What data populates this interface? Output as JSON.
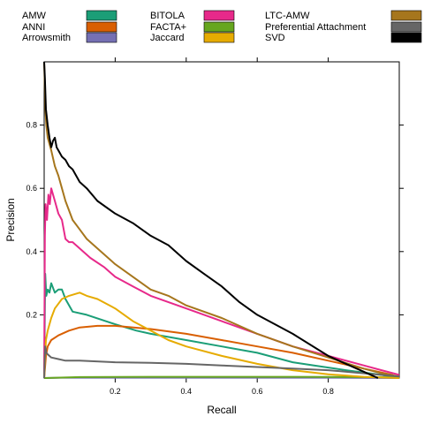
{
  "chart_data": {
    "type": "line",
    "xlabel": "Recall",
    "ylabel": "Precision",
    "xlim": [
      0,
      1
    ],
    "ylim": [
      0,
      1
    ],
    "x_ticks": [
      0.2,
      0.4,
      0.6,
      0.8
    ],
    "x_tick_labels": [
      "0.2",
      "0.4",
      "0.6",
      "0.8"
    ],
    "y_ticks": [
      0.2,
      0.4,
      0.6,
      0.8
    ],
    "y_tick_labels": [
      "0.2",
      "0.4",
      "0.6",
      "0.8"
    ],
    "legend_position": "top",
    "legend_columns": 3,
    "series": [
      {
        "name": "AMW",
        "color": "#1b9e77",
        "points": [
          [
            0.0,
            0.0
          ],
          [
            0.003,
            0.33
          ],
          [
            0.006,
            0.26
          ],
          [
            0.01,
            0.28
          ],
          [
            0.015,
            0.27
          ],
          [
            0.02,
            0.3
          ],
          [
            0.03,
            0.27
          ],
          [
            0.04,
            0.28
          ],
          [
            0.05,
            0.28
          ],
          [
            0.06,
            0.25
          ],
          [
            0.08,
            0.21
          ],
          [
            0.12,
            0.2
          ],
          [
            0.2,
            0.17
          ],
          [
            0.26,
            0.15
          ],
          [
            0.3,
            0.14
          ],
          [
            0.4,
            0.12
          ],
          [
            0.5,
            0.1
          ],
          [
            0.6,
            0.08
          ],
          [
            0.7,
            0.05
          ],
          [
            0.76,
            0.04
          ],
          [
            0.85,
            0.025
          ],
          [
            0.95,
            0.01
          ],
          [
            1.0,
            0.0
          ]
        ]
      },
      {
        "name": "ANNI",
        "color": "#d95f02",
        "points": [
          [
            0.0,
            0.0
          ],
          [
            0.005,
            0.07
          ],
          [
            0.01,
            0.1
          ],
          [
            0.02,
            0.12
          ],
          [
            0.04,
            0.135
          ],
          [
            0.07,
            0.15
          ],
          [
            0.1,
            0.16
          ],
          [
            0.15,
            0.165
          ],
          [
            0.2,
            0.165
          ],
          [
            0.3,
            0.155
          ],
          [
            0.4,
            0.14
          ],
          [
            0.5,
            0.12
          ],
          [
            0.6,
            0.1
          ],
          [
            0.7,
            0.08
          ],
          [
            0.8,
            0.055
          ],
          [
            0.9,
            0.03
          ],
          [
            0.98,
            0.01
          ],
          [
            1.0,
            0.0
          ]
        ]
      },
      {
        "name": "Arrowsmith",
        "color": "#7570b3",
        "points": [
          [
            0.0,
            0.0
          ],
          [
            0.05,
            0.001
          ],
          [
            0.2,
            0.001
          ],
          [
            0.5,
            0.001
          ],
          [
            0.8,
            0.001
          ],
          [
            1.0,
            0.0
          ]
        ]
      },
      {
        "name": "BITOLA",
        "color": "#e7298a",
        "points": [
          [
            0.0,
            0.0
          ],
          [
            0.002,
            0.45
          ],
          [
            0.004,
            0.55
          ],
          [
            0.008,
            0.5
          ],
          [
            0.012,
            0.58
          ],
          [
            0.016,
            0.55
          ],
          [
            0.02,
            0.6
          ],
          [
            0.03,
            0.56
          ],
          [
            0.04,
            0.52
          ],
          [
            0.05,
            0.5
          ],
          [
            0.06,
            0.44
          ],
          [
            0.07,
            0.43
          ],
          [
            0.08,
            0.43
          ],
          [
            0.1,
            0.41
          ],
          [
            0.13,
            0.38
          ],
          [
            0.17,
            0.35
          ],
          [
            0.2,
            0.32
          ],
          [
            0.25,
            0.29
          ],
          [
            0.3,
            0.26
          ],
          [
            0.35,
            0.24
          ],
          [
            0.4,
            0.22
          ],
          [
            0.5,
            0.18
          ],
          [
            0.6,
            0.14
          ],
          [
            0.7,
            0.1
          ],
          [
            0.8,
            0.07
          ],
          [
            0.9,
            0.04
          ],
          [
            0.95,
            0.025
          ],
          [
            1.0,
            0.01
          ]
        ]
      },
      {
        "name": "FACTA+",
        "color": "#66a61e",
        "points": [
          [
            0.0,
            0.0
          ],
          [
            0.1,
            0.003
          ],
          [
            0.3,
            0.004
          ],
          [
            0.5,
            0.004
          ],
          [
            0.7,
            0.004
          ],
          [
            0.9,
            0.003
          ],
          [
            1.0,
            0.002
          ]
        ]
      },
      {
        "name": "Jaccard",
        "color": "#e6ab02",
        "points": [
          [
            0.0,
            0.0
          ],
          [
            0.005,
            0.12
          ],
          [
            0.01,
            0.15
          ],
          [
            0.02,
            0.19
          ],
          [
            0.03,
            0.22
          ],
          [
            0.05,
            0.25
          ],
          [
            0.07,
            0.26
          ],
          [
            0.1,
            0.27
          ],
          [
            0.12,
            0.26
          ],
          [
            0.15,
            0.25
          ],
          [
            0.2,
            0.22
          ],
          [
            0.25,
            0.18
          ],
          [
            0.3,
            0.15
          ],
          [
            0.35,
            0.12
          ],
          [
            0.4,
            0.1
          ],
          [
            0.5,
            0.07
          ],
          [
            0.6,
            0.045
          ],
          [
            0.7,
            0.025
          ],
          [
            0.8,
            0.012
          ],
          [
            0.9,
            0.004
          ],
          [
            1.0,
            0.0
          ]
        ]
      },
      {
        "name": "LTC-AMW",
        "color": "#a6761d",
        "points": [
          [
            0.0,
            1.0
          ],
          [
            0.002,
            0.92
          ],
          [
            0.004,
            0.84
          ],
          [
            0.006,
            0.8
          ],
          [
            0.01,
            0.76
          ],
          [
            0.02,
            0.72
          ],
          [
            0.03,
            0.67
          ],
          [
            0.04,
            0.64
          ],
          [
            0.05,
            0.6
          ],
          [
            0.06,
            0.56
          ],
          [
            0.08,
            0.5
          ],
          [
            0.1,
            0.47
          ],
          [
            0.12,
            0.44
          ],
          [
            0.15,
            0.41
          ],
          [
            0.2,
            0.36
          ],
          [
            0.25,
            0.32
          ],
          [
            0.3,
            0.28
          ],
          [
            0.35,
            0.26
          ],
          [
            0.4,
            0.23
          ],
          [
            0.5,
            0.19
          ],
          [
            0.6,
            0.14
          ],
          [
            0.7,
            0.1
          ],
          [
            0.8,
            0.065
          ],
          [
            0.9,
            0.03
          ],
          [
            0.95,
            0.015
          ],
          [
            1.0,
            0.005
          ]
        ]
      },
      {
        "name": "Preferential Attachment",
        "color": "#666666",
        "points": [
          [
            0.0,
            0.0
          ],
          [
            0.003,
            0.1
          ],
          [
            0.006,
            0.08
          ],
          [
            0.01,
            0.075
          ],
          [
            0.02,
            0.065
          ],
          [
            0.04,
            0.06
          ],
          [
            0.06,
            0.055
          ],
          [
            0.1,
            0.055
          ],
          [
            0.2,
            0.05
          ],
          [
            0.3,
            0.048
          ],
          [
            0.4,
            0.045
          ],
          [
            0.5,
            0.04
          ],
          [
            0.6,
            0.035
          ],
          [
            0.7,
            0.03
          ],
          [
            0.8,
            0.025
          ],
          [
            0.9,
            0.015
          ],
          [
            1.0,
            0.005
          ]
        ]
      },
      {
        "name": "SVD",
        "color": "#000000",
        "points": [
          [
            0.0,
            1.0
          ],
          [
            0.002,
            0.95
          ],
          [
            0.005,
            0.85
          ],
          [
            0.01,
            0.8
          ],
          [
            0.015,
            0.76
          ],
          [
            0.02,
            0.73
          ],
          [
            0.025,
            0.75
          ],
          [
            0.03,
            0.76
          ],
          [
            0.035,
            0.73
          ],
          [
            0.04,
            0.72
          ],
          [
            0.05,
            0.7
          ],
          [
            0.06,
            0.69
          ],
          [
            0.07,
            0.67
          ],
          [
            0.08,
            0.66
          ],
          [
            0.1,
            0.62
          ],
          [
            0.12,
            0.6
          ],
          [
            0.15,
            0.56
          ],
          [
            0.2,
            0.52
          ],
          [
            0.25,
            0.49
          ],
          [
            0.3,
            0.45
          ],
          [
            0.35,
            0.42
          ],
          [
            0.4,
            0.37
          ],
          [
            0.45,
            0.33
          ],
          [
            0.5,
            0.29
          ],
          [
            0.55,
            0.24
          ],
          [
            0.6,
            0.2
          ],
          [
            0.7,
            0.14
          ],
          [
            0.8,
            0.07
          ],
          [
            0.85,
            0.045
          ],
          [
            0.9,
            0.02
          ],
          [
            0.94,
            0.0
          ]
        ]
      }
    ]
  }
}
